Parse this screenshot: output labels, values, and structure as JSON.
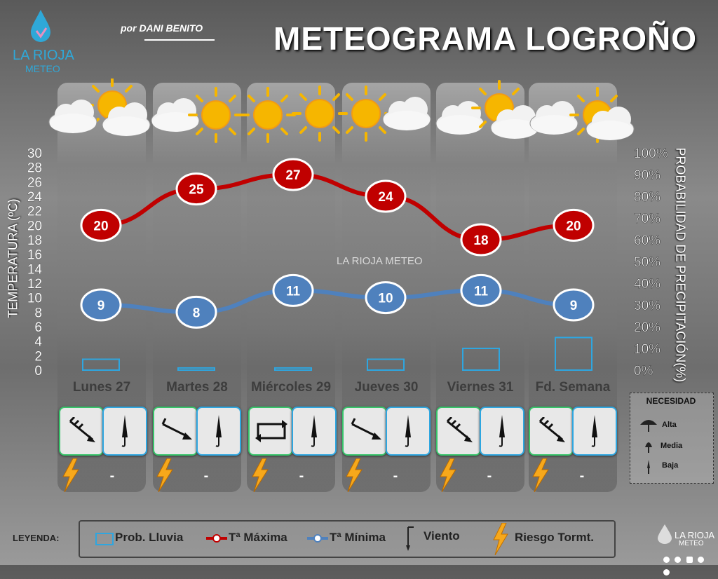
{
  "header": {
    "title": "METEOGRAMA LOGROÑO",
    "byline": "por DANI BENITO",
    "logo_name": "LA RIOJA",
    "logo_sub": "METEO",
    "watermark": "LA RIOJA METEO"
  },
  "chart_data": {
    "type": "line",
    "categories": [
      "Lunes 27",
      "Martes 28",
      "Miércoles 29",
      "Jueves 30",
      "Viernes 31",
      "Fd. Semana"
    ],
    "ylabel": "TEMPERATURA (ºC)",
    "y2label": "PROBABILIDAD DE PRECIPITACIÓN(%)",
    "ylim": [
      0,
      30
    ],
    "y2lim": [
      0,
      100
    ],
    "yticks": [
      "30",
      "28",
      "26",
      "24",
      "22",
      "20",
      "18",
      "16",
      "14",
      "12",
      "10",
      "8",
      "6",
      "4",
      "2",
      "0"
    ],
    "y2ticks": [
      "100%",
      "90%",
      "80%",
      "70%",
      "60%",
      "50%",
      "40%",
      "30%",
      "20%",
      "10%",
      "0%"
    ],
    "series": [
      {
        "name": "Tª Máxima",
        "values": [
          20,
          25,
          27,
          24,
          18,
          20
        ],
        "color": "#c00000"
      },
      {
        "name": "Tª Mínima",
        "values": [
          9,
          8,
          11,
          10,
          11,
          9
        ],
        "color": "#4f81bd"
      }
    ],
    "precip": {
      "name": "Prob. Lluvia",
      "values": [
        5,
        1,
        1,
        5,
        10,
        15
      ],
      "color": "#2ea6e0"
    }
  },
  "days": [
    {
      "label": "Lunes 27",
      "wind": "wind-nw-strong-icon",
      "storm": "lightning-icon",
      "storm_text": "-"
    },
    {
      "label": "Martes 28",
      "wind": "wind-nw-icon",
      "storm": "lightning-icon",
      "storm_text": "-"
    },
    {
      "label": "Miércoles 29",
      "wind": "wind-variable-icon",
      "storm": "lightning-icon",
      "storm_text": "-"
    },
    {
      "label": "Jueves 30",
      "wind": "wind-nw-icon",
      "storm": "lightning-icon",
      "storm_text": "-"
    },
    {
      "label": "Viernes 31",
      "wind": "wind-nw-strong-icon",
      "storm": "lightning-icon",
      "storm_text": "-"
    },
    {
      "label": "Fd. Semana",
      "wind": "wind-nw-strong-icon",
      "storm": "lightning-icon",
      "storm_text": "-"
    }
  ],
  "necesidad": {
    "title": "NECESIDAD",
    "levels": [
      "Alta",
      "Media",
      "Baja"
    ]
  },
  "legend": {
    "label": "LEYENDA:",
    "rain": "Prob. Lluvia",
    "tmax": "Tª Máxima",
    "tmin": "Tª Mínima",
    "wind": "Viento",
    "storm": "Riesgo Tormt."
  },
  "footer": {
    "brand": "LA RIOJA",
    "brand_sub": "METEO"
  }
}
